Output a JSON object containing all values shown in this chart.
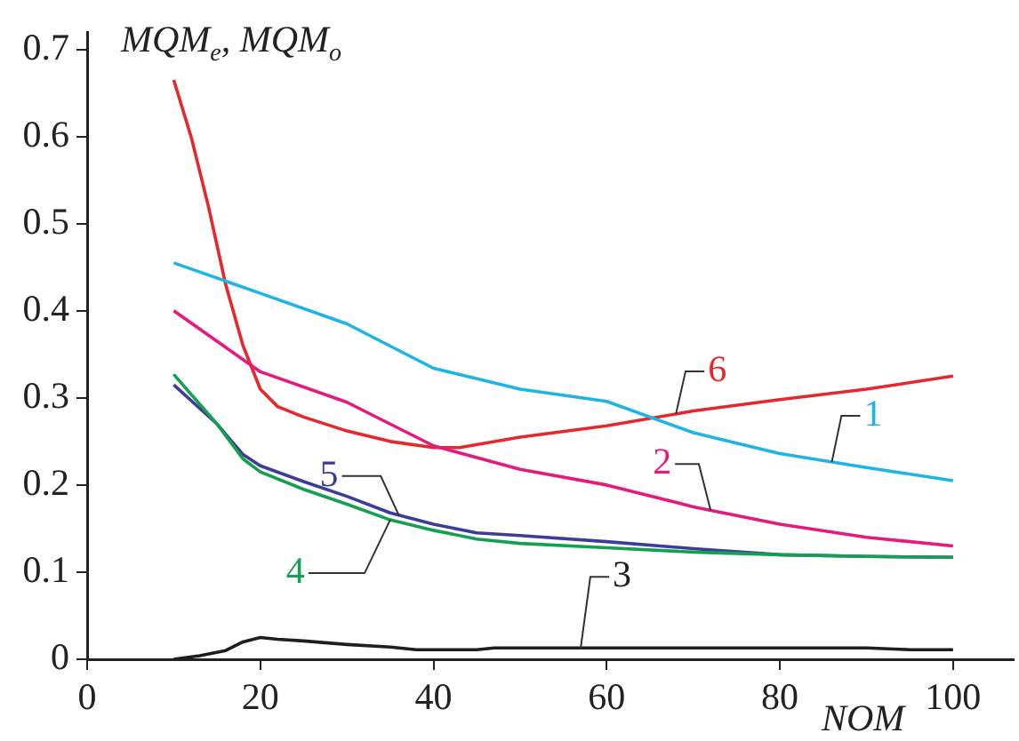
{
  "chart_data": {
    "type": "line",
    "xlabel": "NOM",
    "ylabel": "MQM$_{e}$, MQM$_{o}$",
    "xlim": [
      0,
      107
    ],
    "ylim": [
      0,
      0.72
    ],
    "xticks": [
      0,
      20,
      40,
      60,
      80,
      100
    ],
    "yticks": [
      0,
      0.1,
      0.2,
      0.3,
      0.4,
      0.5,
      0.6,
      0.7
    ],
    "grid": false,
    "legend": false,
    "marker": "none",
    "line_style": "solid",
    "series": [
      {
        "name": "1",
        "color": "#1eb4e6",
        "x": [
          10,
          20,
          30,
          40,
          50,
          60,
          70,
          80,
          90,
          100
        ],
        "values": [
          0.455,
          0.42,
          0.385,
          0.334,
          0.31,
          0.296,
          0.26,
          0.236,
          0.22,
          0.205
        ]
      },
      {
        "name": "2",
        "color": "#e6197d",
        "x": [
          10,
          20,
          30,
          40,
          50,
          60,
          70,
          80,
          90,
          100
        ],
        "values": [
          0.4,
          0.33,
          0.295,
          0.245,
          0.218,
          0.2,
          0.175,
          0.155,
          0.14,
          0.13
        ]
      },
      {
        "name": "3",
        "color": "#1e1e1e",
        "x": [
          10,
          13,
          16,
          18,
          20,
          22,
          25,
          30,
          35,
          38,
          45,
          47,
          60,
          80,
          90,
          95,
          100
        ],
        "values": [
          0,
          0.004,
          0.01,
          0.02,
          0.025,
          0.023,
          0.021,
          0.017,
          0.014,
          0.011,
          0.011,
          0.013,
          0.013,
          0.013,
          0.013,
          0.011,
          0.011
        ]
      },
      {
        "name": "4",
        "color": "#14a050",
        "x": [
          10,
          15,
          18,
          20,
          25,
          30,
          35,
          40,
          45,
          50,
          60,
          70,
          80,
          90,
          100
        ],
        "values": [
          0.327,
          0.27,
          0.23,
          0.215,
          0.195,
          0.178,
          0.16,
          0.148,
          0.138,
          0.133,
          0.128,
          0.123,
          0.12,
          0.118,
          0.117
        ]
      },
      {
        "name": "5",
        "color": "#3c3c9b",
        "x": [
          10,
          15,
          18,
          20,
          25,
          30,
          35,
          40,
          45,
          50,
          60,
          70,
          80,
          90,
          100
        ],
        "values": [
          0.315,
          0.27,
          0.235,
          0.222,
          0.204,
          0.187,
          0.168,
          0.155,
          0.145,
          0.142,
          0.135,
          0.127,
          0.12,
          0.118,
          0.117
        ]
      },
      {
        "name": "6",
        "color": "#e6282d",
        "x": [
          10,
          12,
          14,
          16,
          18,
          20,
          22,
          25,
          30,
          35,
          40,
          43,
          50,
          60,
          70,
          80,
          90,
          100
        ],
        "values": [
          0.665,
          0.6,
          0.52,
          0.43,
          0.36,
          0.31,
          0.29,
          0.278,
          0.262,
          0.25,
          0.243,
          0.243,
          0.255,
          0.268,
          0.285,
          0.298,
          0.31,
          0.325
        ]
      }
    ]
  }
}
